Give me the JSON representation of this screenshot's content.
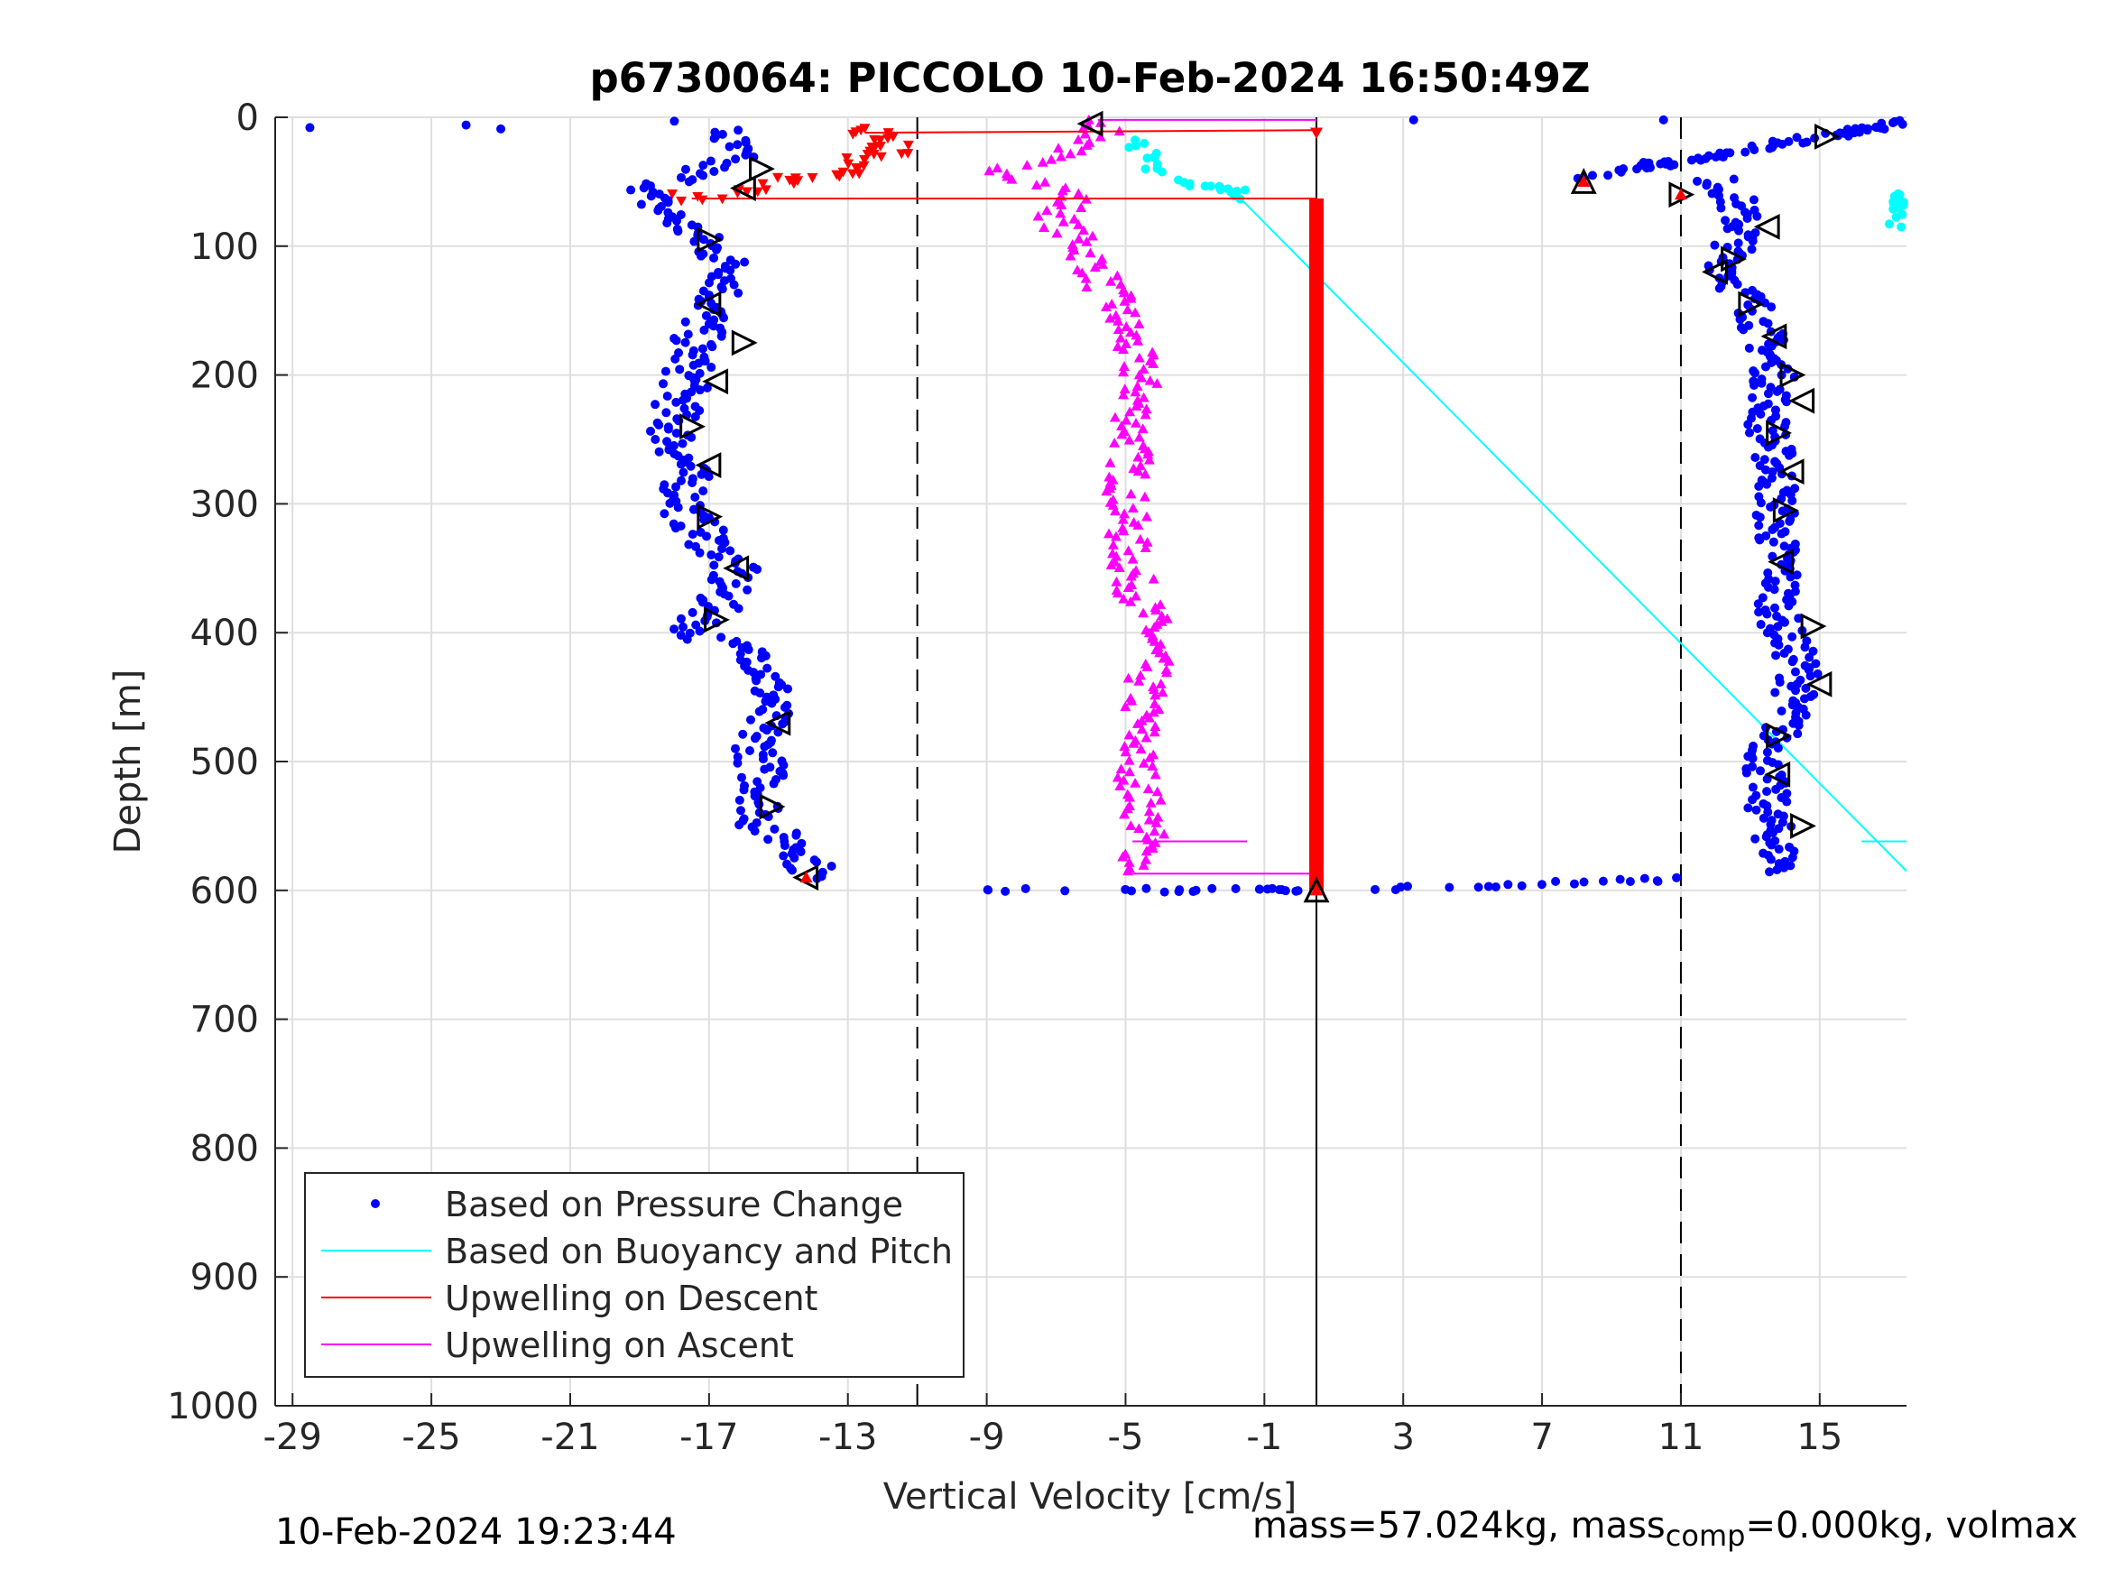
{
  "chart_data": {
    "type": "scatter",
    "title": "p6730064: PICCOLO 10-Feb-2024 16:50:49Z",
    "xlabel": "Vertical Velocity [cm/s]",
    "ylabel": "Depth [m]",
    "xlim": [
      -29.5,
      17.5
    ],
    "ylim": [
      0,
      1000
    ],
    "y_reversed": true,
    "grid": true,
    "xticks": [
      -29,
      -25,
      -21,
      -17,
      -13,
      -9,
      -5,
      -1,
      3,
      7,
      11,
      15
    ],
    "yticks": [
      0,
      100,
      200,
      300,
      400,
      500,
      600,
      700,
      800,
      900,
      1000
    ],
    "legend_position": "bottom-left",
    "legend": [
      "Based on Pressure Change",
      "Based on Buoyancy and Pitch",
      "Upwelling on Descent",
      "Upwelling on Ascent"
    ],
    "reference_lines": {
      "dashed_x": [
        -11,
        11
      ],
      "solid_x": [
        0
      ],
      "color": "#000000"
    },
    "series": [
      {
        "name": "Based on Pressure Change",
        "color": "#0000ff",
        "marker": "dot",
        "descent_profile": {
          "depth": [
            10,
            30,
            60,
            100,
            120,
            150,
            180,
            200,
            240,
            270,
            310,
            350,
            380,
            400,
            420,
            450,
            480,
            520,
            550,
            570,
            590
          ],
          "velocity": [
            -16.6,
            -16.3,
            -18.9,
            -17.0,
            -16.2,
            -17.0,
            -17.5,
            -17.6,
            -18.1,
            -17.7,
            -17.6,
            -16.3,
            -16.8,
            -17.5,
            -15.4,
            -15.2,
            -15.6,
            -15.4,
            -15.5,
            -14.2,
            -14.0
          ]
        },
        "ascent_profile": {
          "depth": [
            50,
            60,
            90,
            110,
            130,
            150,
            170,
            200,
            240,
            280,
            320,
            350,
            390,
            430,
            470,
            500,
            540,
            570,
            585
          ],
          "velocity": [
            12.0,
            12.5,
            12.8,
            12.3,
            12.6,
            13.2,
            13.4,
            13.7,
            13.5,
            13.8,
            13.7,
            13.9,
            13.8,
            14.5,
            14.0,
            13.4,
            13.5,
            13.8,
            14.0
          ]
        },
        "surface_points": {
          "depth": [
            8,
            6,
            9,
            3,
            2,
            2
          ],
          "velocity": [
            -28.5,
            -24,
            -23,
            -18,
            3.3,
            10.5
          ]
        },
        "turn_points": {
          "depth": [
            592,
            595,
            598,
            600,
            600,
            598,
            596,
            593,
            590,
            588
          ],
          "velocity": [
            -9,
            -5.5,
            -3,
            -2,
            1,
            3,
            5,
            7,
            9,
            11
          ]
        }
      },
      {
        "name": "Based on Buoyancy and Pitch",
        "color": "#00ffff",
        "line": {
          "depth": [
            60,
            585
          ],
          "velocity": [
            -1.8,
            17.5
          ]
        },
        "points": {
          "depth": [
            20,
            30,
            40,
            50,
            55,
            58,
            60
          ],
          "velocity": [
            -4.6,
            -4.3,
            -4.2,
            -3.4,
            -2.5,
            -2.0,
            -1.8
          ]
        }
      },
      {
        "name": "Upwelling on Descent",
        "color": "#ff0000",
        "marker": "triangle-down",
        "points": {
          "depth": [
            12,
            15,
            20,
            25,
            30,
            35,
            40,
            45,
            50,
            55,
            60,
            62
          ],
          "velocity": [
            -13.0,
            -12.2,
            -12.5,
            -11.8,
            -12.0,
            -12.5,
            -13.0,
            -13.5,
            -14.5,
            -15.0,
            -16.5,
            -17.5
          ]
        },
        "connect_lines": [
          [
            -12.5,
            12,
            0.5,
            10
          ],
          [
            -17.5,
            63,
            0.5,
            63
          ]
        ],
        "vertical_bar": {
          "velocity": 0.5,
          "depth_range": [
            63,
            600
          ]
        }
      },
      {
        "name": "Upwelling on Ascent",
        "color": "#ff00ff",
        "marker": "triangle-up",
        "profile": {
          "depth": [
            0,
            20,
            40,
            60,
            80,
            100,
            150,
            200,
            250,
            300,
            350,
            400,
            450,
            500,
            550,
            585
          ],
          "velocity": [
            -5.5,
            -6.0,
            -8.5,
            -6.5,
            -7.0,
            -6.2,
            -5.2,
            -4.6,
            -4.8,
            -5.0,
            -4.9,
            -4.2,
            -4.5,
            -4.7,
            -4.4,
            -4.6
          ]
        },
        "connect_lines": [
          [
            -4.8,
            562,
            -1.5,
            562
          ],
          [
            -4.8,
            587,
            0.5,
            587
          ],
          [
            -5.8,
            2,
            0.5,
            2
          ]
        ]
      },
      {
        "name": "state markers",
        "color": "#000000",
        "marker": "open-triangle",
        "descent": {
          "depth": [
            5,
            40,
            55,
            95,
            145,
            175,
            205,
            240,
            270,
            310,
            350,
            390,
            470,
            535,
            590
          ],
          "velocity": [
            -6,
            -15.5,
            -16,
            -17,
            -17,
            -16,
            -16.8,
            -17.5,
            -17.0,
            -17.0,
            -16.2,
            -16.8,
            -15,
            -15.2,
            -14.2
          ]
        },
        "ascent": {
          "depth": [
            15,
            50,
            60,
            85,
            110,
            120,
            145,
            170,
            200,
            220,
            245,
            275,
            305,
            345,
            395,
            440,
            480,
            510,
            550,
            600
          ],
          "velocity": [
            15.2,
            8.2,
            11,
            13.5,
            12.5,
            12,
            13,
            13.7,
            14.2,
            14.5,
            13.8,
            14.2,
            14,
            13.9,
            14.8,
            15,
            13.8,
            13.8,
            14.5,
            0.5
          ]
        }
      }
    ]
  },
  "footer": {
    "left": "10-Feb-2024 19:23:44",
    "right_main": "mass=57.024kg, mass",
    "right_sub": "comp",
    "right_tail": "=0.000kg, volmax"
  }
}
